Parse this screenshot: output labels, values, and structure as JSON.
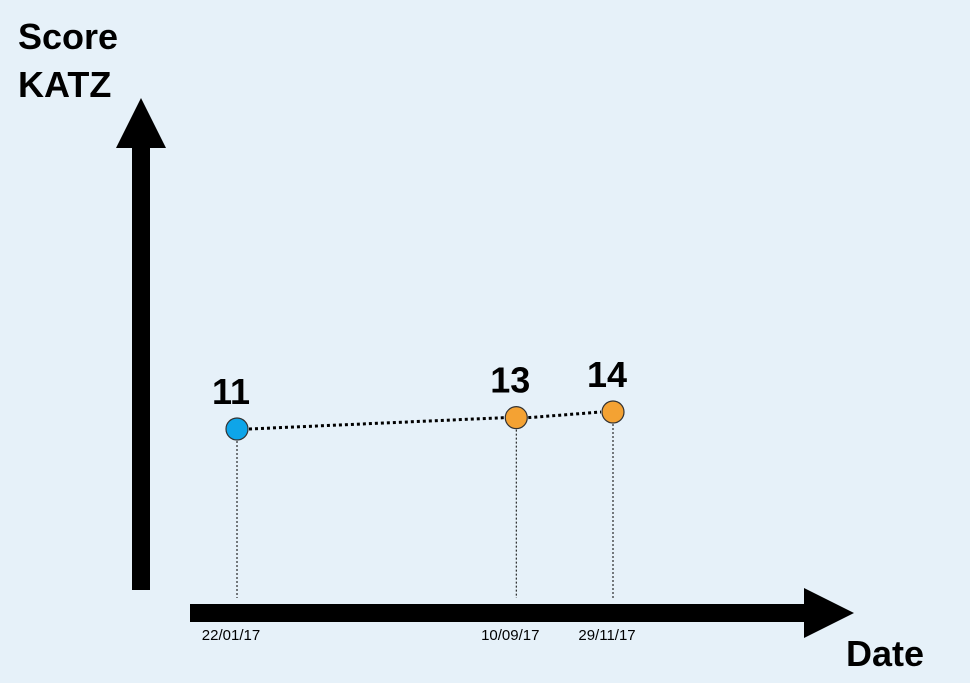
{
  "chart_data": {
    "type": "line",
    "ylabel_lines": [
      "Score",
      "KATZ"
    ],
    "xlabel": "Date",
    "points": [
      {
        "date": "22/01/17",
        "value": 11,
        "label": "11",
        "color": "#0ea5e9"
      },
      {
        "date": "10/09/17",
        "value": 13,
        "label": "13",
        "color": "#f4a233"
      },
      {
        "date": "29/11/17",
        "value": 14,
        "label": "14",
        "color": "#f4a233"
      }
    ]
  }
}
